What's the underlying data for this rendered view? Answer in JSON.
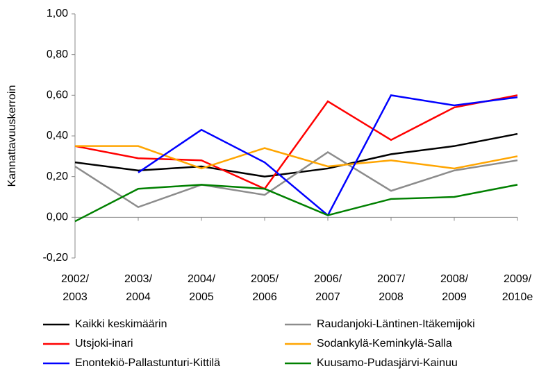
{
  "chart_data": {
    "type": "line",
    "y_label": "Kannattavuuskerroin",
    "categories": [
      "2002/\n2003",
      "2003/\n2004",
      "2004/\n2005",
      "2005/\n2006",
      "2006/\n2007",
      "2007/\n2008",
      "2008/\n2009",
      "2009/\n2010e"
    ],
    "series": [
      {
        "name": "Kaikki keskimäärin",
        "color": "#000000",
        "values": [
          0.27,
          0.23,
          0.25,
          0.2,
          0.24,
          0.31,
          0.35,
          0.41
        ]
      },
      {
        "name": "Raudanjoki-Läntinen-Itäkemijoki",
        "color": "#8c8c8c",
        "values": [
          0.25,
          0.05,
          0.16,
          0.11,
          0.32,
          0.13,
          0.23,
          0.28
        ]
      },
      {
        "name": "Utsjoki-inari",
        "color": "#ff0000",
        "values": [
          0.35,
          0.29,
          0.28,
          0.14,
          0.57,
          0.38,
          0.54,
          0.6
        ]
      },
      {
        "name": "Sodankylä-Keminkylä-Salla",
        "color": "#ffa500",
        "values": [
          0.35,
          0.35,
          0.24,
          0.34,
          0.25,
          0.28,
          0.24,
          0.3
        ]
      },
      {
        "name": "Enontekiö-Pallastunturi-Kittilä",
        "color": "#0000ff",
        "values": [
          null,
          0.22,
          0.43,
          0.27,
          0.01,
          0.6,
          0.55,
          0.59
        ]
      },
      {
        "name": "Kuusamo-Pudasjärvi-Kainuu",
        "color": "#008000",
        "values": [
          -0.02,
          0.14,
          0.16,
          0.14,
          0.01,
          0.09,
          0.1,
          0.16
        ]
      }
    ],
    "ylim": [
      -0.2,
      1.0
    ],
    "yticks": [
      {
        "value": -0.2,
        "label": "-0,20"
      },
      {
        "value": 0,
        "label": "0,00"
      },
      {
        "value": 0.2,
        "label": "0,20"
      },
      {
        "value": 0.4,
        "label": "0,40"
      },
      {
        "value": 0.6,
        "label": "0,60"
      },
      {
        "value": 0.8,
        "label": "0,80"
      },
      {
        "value": 1.0,
        "label": "1,00"
      }
    ],
    "grid": false,
    "legend": "bottom"
  }
}
